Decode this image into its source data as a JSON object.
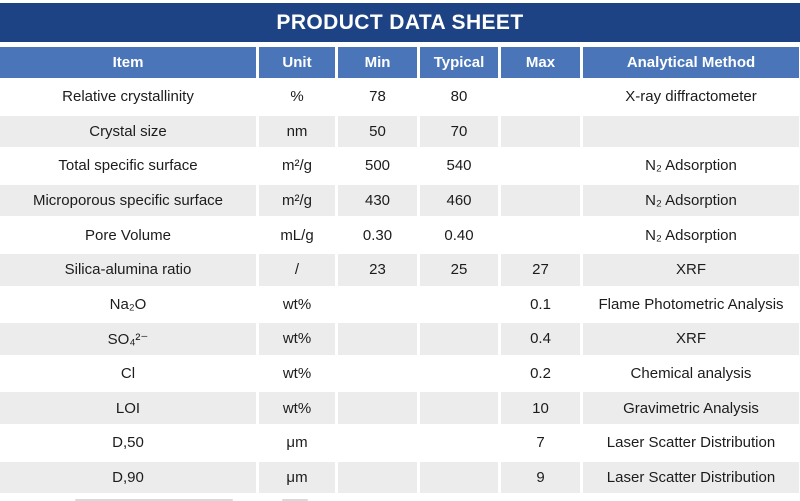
{
  "title": "PRODUCT DATA SHEET",
  "colors": {
    "title_bar_navy": "#1E4384",
    "header_blue": "#4A76B9",
    "row_gray": "#ECECEC",
    "row_white": "#FFFFFF",
    "header_text": "#FFFFFF",
    "body_text": "#1C1C1C"
  },
  "table": {
    "columns": [
      "Item",
      "Unit",
      "Min",
      "Typical",
      "Max",
      "Analytical Method"
    ],
    "rows": [
      {
        "item": "Relative crystallinity",
        "unit": "%",
        "min": "78",
        "typical": "80",
        "max": "",
        "method": "X-ray diffractometer"
      },
      {
        "item": "Crystal size",
        "unit": "nm",
        "min": "50",
        "typical": "70",
        "max": "",
        "method": ""
      },
      {
        "item": "Total specific surface",
        "unit": "m²/g",
        "min": "500",
        "typical": "540",
        "max": "",
        "method": "N₂ Adsorption"
      },
      {
        "item": "Microporous specific surface",
        "unit": "m²/g",
        "min": "430",
        "typical": "460",
        "max": "",
        "method": "N₂ Adsorption"
      },
      {
        "item": "Pore Volume",
        "unit": "mL/g",
        "min": "0.30",
        "typical": "0.40",
        "max": "",
        "method": "N₂ Adsorption"
      },
      {
        "item": "Silica-alumina ratio",
        "unit": "/",
        "min": "23",
        "typical": "25",
        "max": "27",
        "method": "XRF"
      },
      {
        "item": "Na₂O",
        "unit": "wt%",
        "min": "",
        "typical": "",
        "max": "0.1",
        "method": "Flame Photometric Analysis"
      },
      {
        "item": "SO₄²⁻",
        "unit": "wt%",
        "min": "",
        "typical": "",
        "max": "0.4",
        "method": "XRF"
      },
      {
        "item": "Cl",
        "unit": "wt%",
        "min": "",
        "typical": "",
        "max": "0.2",
        "method": "Chemical analysis"
      },
      {
        "item": "LOI",
        "unit": "wt%",
        "min": "",
        "typical": "",
        "max": "10",
        "method": "Gravimetric Analysis"
      },
      {
        "item": "D,50",
        "unit": "μm",
        "min": "",
        "typical": "",
        "max": "7",
        "method": "Laser Scatter Distribution"
      },
      {
        "item": "D,90",
        "unit": "μm",
        "min": "",
        "typical": "",
        "max": "9",
        "method": "Laser Scatter Distribution"
      }
    ]
  }
}
